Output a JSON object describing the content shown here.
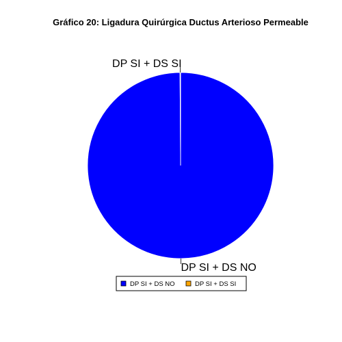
{
  "chart_data": {
    "type": "pie",
    "title": "Gráfico 20: Ligadura Quirúrgica Ductus Arterioso Permeable",
    "categories": [
      "DP SI + DS NO",
      "DP SI + DS SI"
    ],
    "values": [
      99.9,
      0.1
    ],
    "colors": [
      "#0000FF",
      "#FFA500"
    ],
    "legend": {
      "placement": "bottom",
      "entries": [
        "DP SI + DS NO",
        "DP SI + DS SI"
      ]
    }
  }
}
